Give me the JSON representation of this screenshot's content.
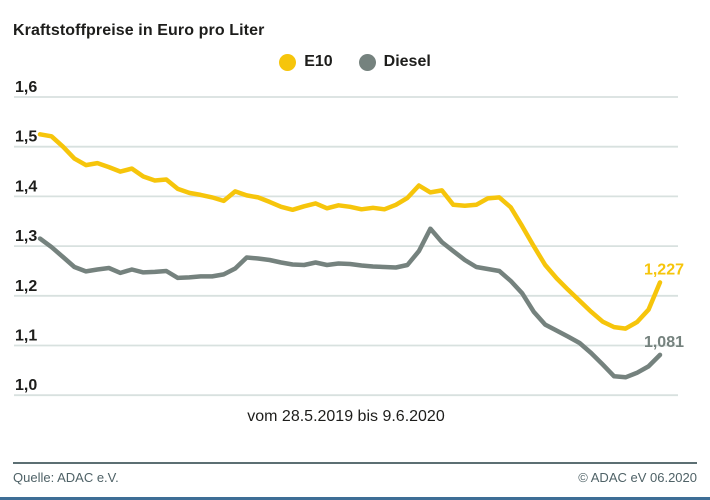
{
  "header": {
    "title": "Kraftstoffpreise in Euro pro Liter"
  },
  "legend": {
    "items": [
      {
        "label": "E10",
        "color": "#f6c50b",
        "dot_icon": "circle"
      },
      {
        "label": "Diesel",
        "color": "#75827e",
        "dot_icon": "circle"
      }
    ]
  },
  "chart_data": {
    "type": "line",
    "title": "Kraftstoffpreise in Euro pro Liter",
    "xlabel": "vom 28.5.2019 bis 9.6.2020",
    "ylabel": "Euro pro Liter",
    "ylim": [
      1.0,
      1.6
    ],
    "grid": true,
    "gridline_color": "#d8e1df",
    "legend_position": "top-center",
    "yticks": [
      {
        "label": "1,6",
        "value": 1.6
      },
      {
        "label": "1,5",
        "value": 1.5
      },
      {
        "label": "1,4",
        "value": 1.4
      },
      {
        "label": "1,3",
        "value": 1.3
      },
      {
        "label": "1,2",
        "value": 1.2
      },
      {
        "label": "1,1",
        "value": 1.1
      },
      {
        "label": "1,0",
        "value": 1.0
      }
    ],
    "x_note": "weekly values from 28.5.2019 to 9.6.2020",
    "series": [
      {
        "name": "E10",
        "color": "#f6c50b",
        "end_label": "1,227",
        "end_value": 1.227,
        "values": [
          1.525,
          1.521,
          1.5,
          1.476,
          1.463,
          1.467,
          1.459,
          1.45,
          1.456,
          1.44,
          1.432,
          1.434,
          1.415,
          1.407,
          1.403,
          1.398,
          1.391,
          1.41,
          1.402,
          1.398,
          1.389,
          1.379,
          1.373,
          1.38,
          1.386,
          1.376,
          1.382,
          1.379,
          1.374,
          1.377,
          1.374,
          1.383,
          1.397,
          1.422,
          1.408,
          1.412,
          1.383,
          1.381,
          1.383,
          1.396,
          1.398,
          1.378,
          1.34,
          1.3,
          1.262,
          1.235,
          1.212,
          1.19,
          1.168,
          1.148,
          1.137,
          1.134,
          1.147,
          1.172,
          1.227
        ]
      },
      {
        "name": "Diesel",
        "color": "#75827e",
        "end_label": "1,081",
        "end_value": 1.081,
        "values": [
          1.315,
          1.298,
          1.278,
          1.258,
          1.249,
          1.253,
          1.256,
          1.246,
          1.253,
          1.247,
          1.248,
          1.25,
          1.236,
          1.237,
          1.239,
          1.239,
          1.243,
          1.255,
          1.277,
          1.275,
          1.272,
          1.267,
          1.263,
          1.262,
          1.267,
          1.262,
          1.265,
          1.264,
          1.261,
          1.259,
          1.258,
          1.257,
          1.262,
          1.29,
          1.335,
          1.308,
          1.29,
          1.272,
          1.258,
          1.254,
          1.25,
          1.23,
          1.205,
          1.168,
          1.142,
          1.13,
          1.118,
          1.105,
          1.085,
          1.062,
          1.038,
          1.036,
          1.045,
          1.058,
          1.081
        ]
      }
    ]
  },
  "footer": {
    "source": "Quelle: ADAC e.V.",
    "copyright": "© ADAC eV 06.2020"
  }
}
